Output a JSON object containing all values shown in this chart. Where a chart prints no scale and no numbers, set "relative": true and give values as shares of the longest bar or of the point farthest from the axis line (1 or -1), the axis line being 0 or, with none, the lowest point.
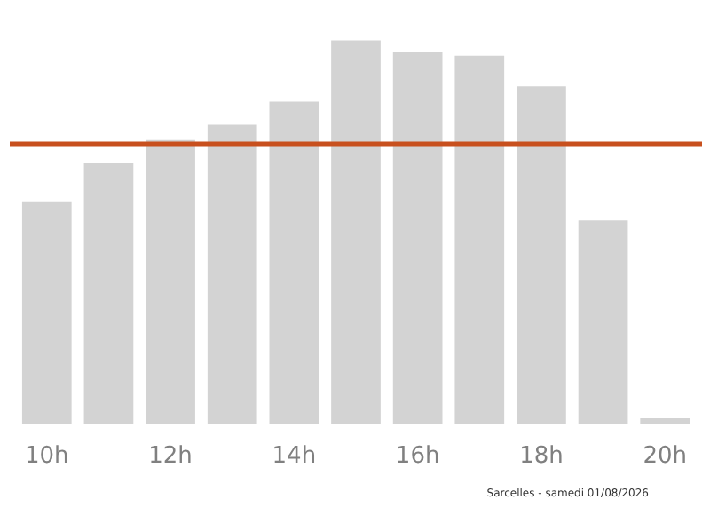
{
  "chart_data": {
    "type": "bar",
    "relative": true,
    "categories": [
      "10h",
      null,
      "12h",
      null,
      "14h",
      null,
      "16h",
      null,
      "18h",
      null,
      "20h"
    ],
    "values": [
      0.58,
      0.68,
      0.74,
      0.78,
      0.84,
      1.0,
      0.97,
      0.96,
      0.88,
      0.53,
      0.014
    ],
    "color": "#d3d3d3",
    "ref_lines": [
      {
        "axis": "y",
        "value": 0.73,
        "color": "#c8501e"
      }
    ],
    "annotations": [
      "Sarcelles - samedi 01/08/2026"
    ],
    "grid": false
  }
}
